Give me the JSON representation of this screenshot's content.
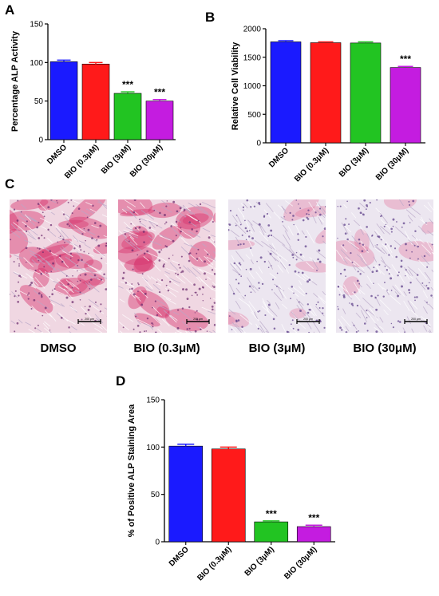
{
  "panels": {
    "a": "A",
    "b": "B",
    "c": "C",
    "d": "D"
  },
  "chart_data": [
    {
      "panel": "A",
      "type": "bar",
      "ylabel": "Percentage ALP Activity",
      "categories": [
        "DMSO",
        "BIO (0.3μM)",
        "BIO (3μM)",
        "BIO (30μM)"
      ],
      "values": [
        101,
        98,
        60,
        50
      ],
      "errors": [
        2,
        2,
        2,
        2
      ],
      "colors": [
        "#1a1aff",
        "#ff1a1a",
        "#22c422",
        "#c41ce0"
      ],
      "annotations": [
        "",
        "",
        "***",
        "***"
      ],
      "yticks": [
        0,
        50,
        100,
        150
      ],
      "ylim": [
        0,
        150
      ]
    },
    {
      "panel": "B",
      "type": "bar",
      "ylabel": "Relative Cell Viability",
      "categories": [
        "DMSO",
        "BIO (0.3μM)",
        "BIO (3μM)",
        "BIO (30μM)"
      ],
      "values": [
        1770,
        1755,
        1750,
        1320
      ],
      "errors": [
        20,
        15,
        20,
        20
      ],
      "colors": [
        "#1a1aff",
        "#ff1a1a",
        "#22c422",
        "#c41ce0"
      ],
      "annotations": [
        "",
        "",
        "",
        "***"
      ],
      "yticks": [
        0,
        500,
        1000,
        1500,
        2000
      ],
      "ylim": [
        0,
        2000
      ]
    },
    {
      "panel": "D",
      "type": "bar",
      "ylabel": "% of Positive ALP Staining Area",
      "categories": [
        "DMSO",
        "BIO (0.3μM)",
        "BIO (3μM)",
        "BIO (30μM)"
      ],
      "values": [
        101,
        98,
        21,
        16
      ],
      "errors": [
        2,
        2,
        1,
        1.5
      ],
      "colors": [
        "#1a1aff",
        "#ff1a1a",
        "#22c422",
        "#c41ce0"
      ],
      "annotations": [
        "",
        "",
        "***",
        "***"
      ],
      "yticks": [
        0,
        50,
        100,
        150
      ],
      "ylim": [
        0,
        150
      ]
    }
  ],
  "micrographs": [
    {
      "label": "DMSO",
      "stain": "heavy",
      "scale_text": "200 μm"
    },
    {
      "label": "BIO (0.3μM)",
      "stain": "heavy",
      "scale_text": "200 μm"
    },
    {
      "label": "BIO (3μM)",
      "stain": "light",
      "scale_text": "200 μm"
    },
    {
      "label": "BIO (30μM)",
      "stain": "light",
      "scale_text": "200 μm"
    }
  ]
}
